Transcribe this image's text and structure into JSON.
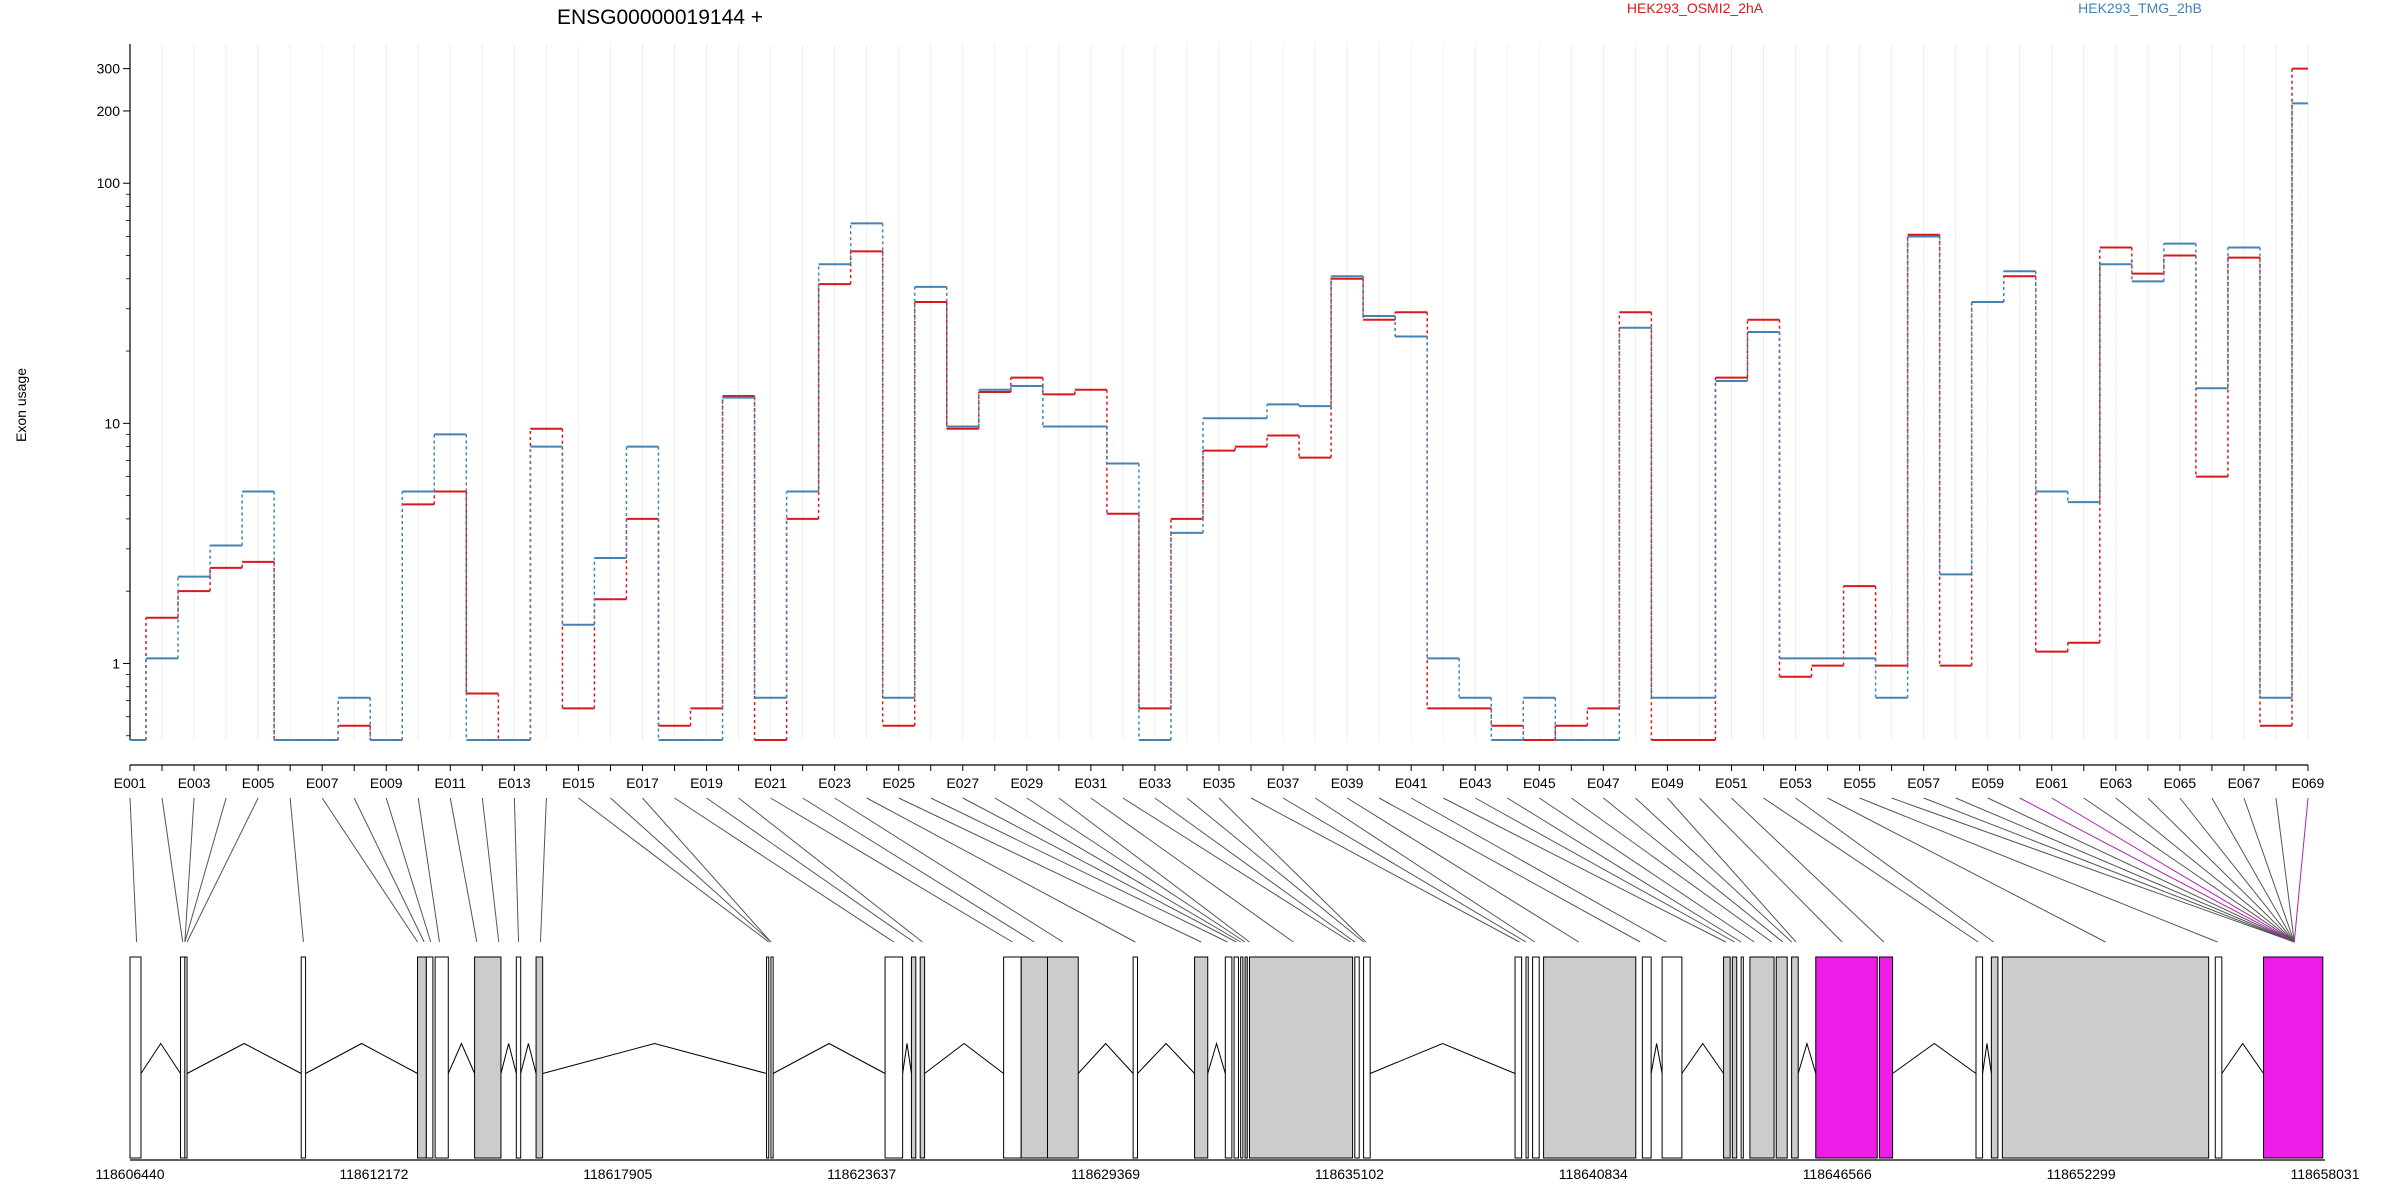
{
  "chart_data": {
    "type": "line",
    "title": "ENSG00000019144 +",
    "ylabel": "Exon usage",
    "yscale": "log",
    "ylim": [
      0.48,
      380
    ],
    "yticks": [
      {
        "value": 1,
        "label": "1"
      },
      {
        "value": 10,
        "label": "10"
      },
      {
        "value": 100,
        "label": "100"
      },
      {
        "value": 200,
        "label": "200"
      },
      {
        "value": 300,
        "label": "300"
      }
    ],
    "exons": [
      "E001",
      "E002",
      "E003",
      "E004",
      "E005",
      "E006",
      "E007",
      "E008",
      "E009",
      "E010",
      "E011",
      "E012",
      "E013",
      "E014",
      "E015",
      "E016",
      "E017",
      "E018",
      "E019",
      "E020",
      "E021",
      "E022",
      "E023",
      "E024",
      "E025",
      "E026",
      "E027",
      "E028",
      "E029",
      "E030",
      "E031",
      "E032",
      "E033",
      "E034",
      "E035",
      "E036",
      "E037",
      "E038",
      "E039",
      "E040",
      "E041",
      "E042",
      "E043",
      "E044",
      "E045",
      "E046",
      "E047",
      "E048",
      "E049",
      "E050",
      "E051",
      "E052",
      "E053",
      "E054",
      "E055",
      "E056",
      "E057",
      "E058",
      "E059",
      "E060",
      "E061",
      "E062",
      "E063",
      "E064",
      "E065",
      "E066",
      "E067",
      "E068",
      "E069"
    ],
    "series": [
      {
        "name": "HEK293_OSMI2_2hA",
        "color": "#d7191c",
        "dash": "3,3",
        "values": [
          0.48,
          1.55,
          2.0,
          2.5,
          2.65,
          0.48,
          0.48,
          0.55,
          0.48,
          4.6,
          5.2,
          0.75,
          0.48,
          9.5,
          0.65,
          1.85,
          4.0,
          0.55,
          0.65,
          13.0,
          0.48,
          4.0,
          38,
          52,
          0.55,
          32,
          9.5,
          13.5,
          15.5,
          13.2,
          13.8,
          4.2,
          0.65,
          4.0,
          7.7,
          8.0,
          8.9,
          7.2,
          40,
          27,
          29,
          0.65,
          0.65,
          0.55,
          0.48,
          0.55,
          0.65,
          29,
          0.48,
          0.48,
          15.5,
          27,
          0.88,
          0.98,
          2.1,
          0.98,
          61,
          0.98,
          32,
          41,
          1.12,
          1.22,
          54,
          42,
          50,
          6.0,
          49,
          0.55,
          300
        ]
      },
      {
        "name": "HEK293_TMG_2hB",
        "color": "#4682b4",
        "dash": "3,3",
        "values": [
          0.48,
          1.05,
          2.3,
          3.1,
          5.2,
          0.48,
          0.48,
          0.72,
          0.48,
          5.2,
          9.0,
          0.48,
          0.48,
          8.0,
          1.45,
          2.75,
          8.0,
          0.48,
          0.48,
          12.8,
          0.72,
          5.2,
          46,
          68,
          0.72,
          37,
          9.7,
          13.8,
          14.3,
          9.7,
          9.7,
          6.8,
          0.48,
          3.5,
          10.5,
          10.5,
          12.0,
          11.8,
          41,
          28,
          23,
          1.05,
          0.72,
          0.48,
          0.72,
          0.48,
          0.48,
          25,
          0.72,
          0.72,
          15.0,
          24,
          1.05,
          1.05,
          1.05,
          0.72,
          60,
          2.35,
          32,
          43,
          5.2,
          4.7,
          46,
          39,
          56,
          14,
          54,
          0.72,
          215
        ]
      }
    ],
    "legend": [
      "HEK293_OSMI2_2hA",
      "HEK293_TMG_2hB"
    ],
    "exon_labels_shown": [
      "E001",
      "E003",
      "E005",
      "E007",
      "E009",
      "E011",
      "E013",
      "E015",
      "E017",
      "E019",
      "E021",
      "E023",
      "E025",
      "E027",
      "E029",
      "E031",
      "E033",
      "E035",
      "E037",
      "E039",
      "E041",
      "E043",
      "E045",
      "E047",
      "E049",
      "E051",
      "E053",
      "E055",
      "E057",
      "E059",
      "E061",
      "E063",
      "E065",
      "E067",
      "E069"
    ],
    "genomic_ticks": [
      "118606440",
      "118612172",
      "118617905",
      "118623637",
      "118629369",
      "118635102",
      "118640834",
      "118646566",
      "118652299",
      "118658031"
    ],
    "highlight_color": "#ee1ee8",
    "grid": true
  }
}
